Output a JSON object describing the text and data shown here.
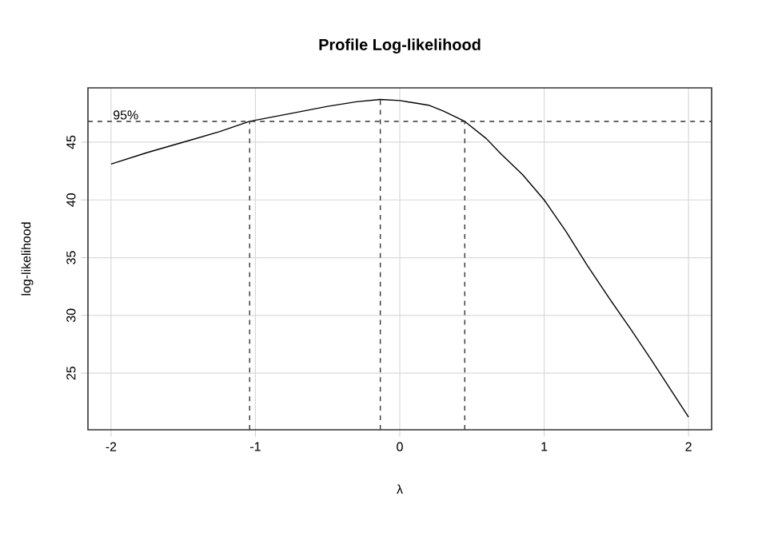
{
  "chart_data": {
    "type": "line",
    "title": "Profile Log-likelihood",
    "xlabel": "λ",
    "ylabel": "log-likelihood",
    "xlim": [
      -2.16,
      2.16
    ],
    "ylim": [
      20.1,
      49.7
    ],
    "xticks": [
      -2,
      -1,
      0,
      1,
      2
    ],
    "yticks": [
      25,
      30,
      35,
      40,
      45
    ],
    "grid": true,
    "series": [
      {
        "color": "#000000",
        "x": [
          -2,
          -1.75,
          -1.5,
          -1.25,
          -1.04,
          -0.75,
          -0.5,
          -0.3,
          -0.135,
          0.0,
          0.1,
          0.2,
          0.3,
          0.45,
          0.6,
          0.7,
          0.85,
          1.0,
          1.15,
          1.3,
          1.45,
          1.6,
          1.75,
          2.0
        ],
        "values": [
          43.1,
          44.1,
          45.0,
          45.9,
          46.8,
          47.5,
          48.1,
          48.5,
          48.7,
          48.6,
          48.4,
          48.2,
          47.7,
          46.8,
          45.3,
          44.0,
          42.2,
          40.0,
          37.3,
          34.3,
          31.5,
          28.8,
          26.0,
          21.2
        ]
      },
      {
        "color": "#333333",
        "line_style": "dashed",
        "x": [
          -1.04,
          -1.04
        ],
        "values": [
          20.1,
          46.8
        ]
      },
      {
        "color": "#333333",
        "line_style": "dashed",
        "x": [
          -0.135,
          -0.135
        ],
        "values": [
          20.1,
          48.7
        ]
      },
      {
        "color": "#333333",
        "line_style": "dashed",
        "x": [
          0.45,
          0.45
        ],
        "values": [
          20.1,
          46.8
        ]
      }
    ],
    "ref_lines": [
      {
        "axis": "y",
        "value": 46.8,
        "color": "#333333",
        "line_style": "dashed"
      }
    ],
    "annotations": [
      {
        "text": "95%",
        "x": -2,
        "y": 46.8
      }
    ]
  }
}
